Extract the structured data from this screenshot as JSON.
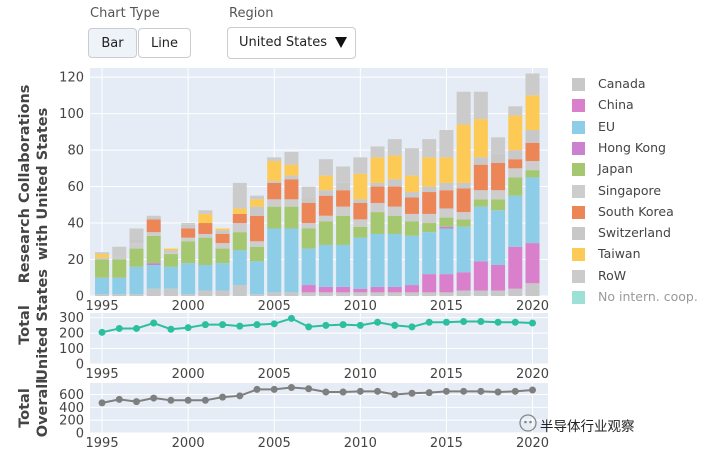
{
  "controls": {
    "chart_type_label": "Chart Type",
    "bar_label": "Bar",
    "line_label": "Line",
    "active": "Bar",
    "region_label": "Region",
    "region_value": "United States"
  },
  "legend": [
    {
      "label": "Canada",
      "color": "#c8c8c8"
    },
    {
      "label": "China",
      "color": "#d97fcb"
    },
    {
      "label": "EU",
      "color": "#8dcde8"
    },
    {
      "label": "Hong Kong",
      "color": "#cc80d0"
    },
    {
      "label": "Japan",
      "color": "#a5c76f"
    },
    {
      "label": "Singapore",
      "color": "#cdcdcd"
    },
    {
      "label": "South Korea",
      "color": "#ec8656"
    },
    {
      "label": "Switzerland",
      "color": "#c8c8c8"
    },
    {
      "label": "Taiwan",
      "color": "#fcca55"
    },
    {
      "label": "RoW",
      "color": "#cbcbcb"
    },
    {
      "label": "No intern. coop.",
      "color": "#9de0d5"
    }
  ],
  "watermark": "半导体行业观察",
  "chart_data": [
    {
      "type": "bar",
      "stacked": true,
      "ylabel": "Research Collaborations with United States",
      "ylim": [
        0,
        125
      ],
      "yticks": [
        0,
        20,
        40,
        60,
        80,
        100,
        120
      ],
      "xticks": [
        1995,
        2000,
        2005,
        2010,
        2015,
        2020
      ],
      "years": [
        1995,
        1996,
        1997,
        1998,
        1999,
        2000,
        2001,
        2002,
        2003,
        2004,
        2005,
        2006,
        2007,
        2008,
        2009,
        2010,
        2011,
        2012,
        2013,
        2014,
        2015,
        2016,
        2017,
        2018,
        2019,
        2020
      ],
      "series": [
        {
          "name": "Canada",
          "color": "#c8c8c8",
          "values": [
            1,
            1,
            1,
            4,
            4,
            1,
            3,
            3,
            6,
            1,
            2,
            2,
            2,
            2,
            2,
            2,
            2,
            2,
            2,
            2,
            2,
            3,
            3,
            3,
            4,
            7
          ]
        },
        {
          "name": "China",
          "color": "#d97fcb",
          "values": [
            0,
            0,
            0,
            0,
            0,
            0,
            0,
            0,
            0,
            0,
            0,
            0,
            4,
            3,
            3,
            2,
            3,
            3,
            4,
            10,
            10,
            10,
            16,
            14,
            23,
            22
          ]
        },
        {
          "name": "EU",
          "color": "#8dcde8",
          "values": [
            9,
            9,
            15,
            13,
            12,
            17,
            14,
            15,
            19,
            18,
            35,
            35,
            20,
            23,
            23,
            28,
            29,
            29,
            27,
            23,
            25,
            25,
            30,
            30,
            28,
            36
          ]
        },
        {
          "name": "Hong Kong",
          "color": "#cc80d0",
          "values": [
            0,
            0,
            0,
            1,
            0,
            0,
            0,
            0,
            0,
            0,
            0,
            0,
            0,
            0,
            0,
            0,
            0,
            0,
            0,
            0,
            1,
            0,
            0,
            0,
            0,
            0
          ]
        },
        {
          "name": "Japan",
          "color": "#a5c76f",
          "values": [
            10,
            10,
            10,
            15,
            7,
            12,
            15,
            8,
            10,
            8,
            12,
            12,
            11,
            13,
            16,
            6,
            12,
            10,
            8,
            5,
            5,
            4,
            4,
            6,
            10,
            4
          ]
        },
        {
          "name": "Singapore",
          "color": "#cdcdcd",
          "values": [
            1,
            2,
            3,
            2,
            1,
            2,
            2,
            3,
            5,
            3,
            4,
            4,
            3,
            3,
            5,
            4,
            5,
            5,
            4,
            5,
            5,
            4,
            5,
            5,
            5,
            5
          ]
        },
        {
          "name": "South Korea",
          "color": "#ec8656",
          "values": [
            0,
            0,
            0,
            7,
            0,
            5,
            6,
            5,
            5,
            14,
            9,
            11,
            11,
            11,
            9,
            9,
            9,
            11,
            9,
            12,
            10,
            13,
            14,
            15,
            5,
            10
          ]
        },
        {
          "name": "Switzerland",
          "color": "#c8c8c8",
          "values": [
            0,
            1,
            2,
            1,
            1,
            2,
            0,
            2,
            0,
            5,
            1,
            2,
            3,
            3,
            4,
            2,
            2,
            4,
            3,
            3,
            4,
            3,
            4,
            5,
            5,
            7
          ]
        },
        {
          "name": "Taiwan",
          "color": "#fcca55",
          "values": [
            2,
            0,
            0,
            0,
            1,
            0,
            5,
            1,
            3,
            4,
            11,
            6,
            0,
            8,
            0,
            14,
            14,
            13,
            9,
            16,
            14,
            32,
            21,
            0,
            19,
            19
          ]
        },
        {
          "name": "RoW",
          "color": "#cbcbcb",
          "values": [
            1,
            4,
            6,
            1,
            0,
            1,
            2,
            0,
            14,
            2,
            2,
            7,
            6,
            9,
            9,
            9,
            6,
            9,
            15,
            10,
            15,
            18,
            15,
            9,
            5,
            12
          ]
        }
      ]
    },
    {
      "type": "line",
      "ylabel": "Total United States",
      "ylim": [
        0,
        330
      ],
      "yticks": [
        0,
        100,
        200,
        300
      ],
      "xticks": [
        1995,
        2000,
        2005,
        2010,
        2015,
        2020
      ],
      "color": "#2bbf9f",
      "x": [
        1995,
        1996,
        1997,
        1998,
        1999,
        2000,
        2001,
        2002,
        2003,
        2004,
        2005,
        2006,
        2007,
        2008,
        2009,
        2010,
        2011,
        2012,
        2013,
        2014,
        2015,
        2016,
        2017,
        2018,
        2019,
        2020
      ],
      "y": [
        205,
        230,
        230,
        265,
        225,
        235,
        255,
        255,
        245,
        255,
        260,
        295,
        240,
        250,
        255,
        250,
        270,
        250,
        240,
        270,
        270,
        275,
        275,
        270,
        270,
        265
      ]
    },
    {
      "type": "line",
      "ylabel": "Total Overall",
      "ylim": [
        0,
        780
      ],
      "yticks": [
        0,
        200,
        400,
        600
      ],
      "xticks": [
        1995,
        2000,
        2005,
        2010,
        2015,
        2020
      ],
      "color": "#7f7f7f",
      "x": [
        1995,
        1996,
        1997,
        1998,
        1999,
        2000,
        2001,
        2002,
        2003,
        2004,
        2005,
        2006,
        2007,
        2008,
        2009,
        2010,
        2011,
        2012,
        2013,
        2014,
        2015,
        2016,
        2017,
        2018,
        2019,
        2020
      ],
      "y": [
        470,
        525,
        490,
        545,
        510,
        510,
        510,
        560,
        580,
        680,
        680,
        710,
        690,
        640,
        640,
        650,
        650,
        600,
        620,
        630,
        650,
        650,
        650,
        640,
        650,
        670
      ]
    }
  ]
}
